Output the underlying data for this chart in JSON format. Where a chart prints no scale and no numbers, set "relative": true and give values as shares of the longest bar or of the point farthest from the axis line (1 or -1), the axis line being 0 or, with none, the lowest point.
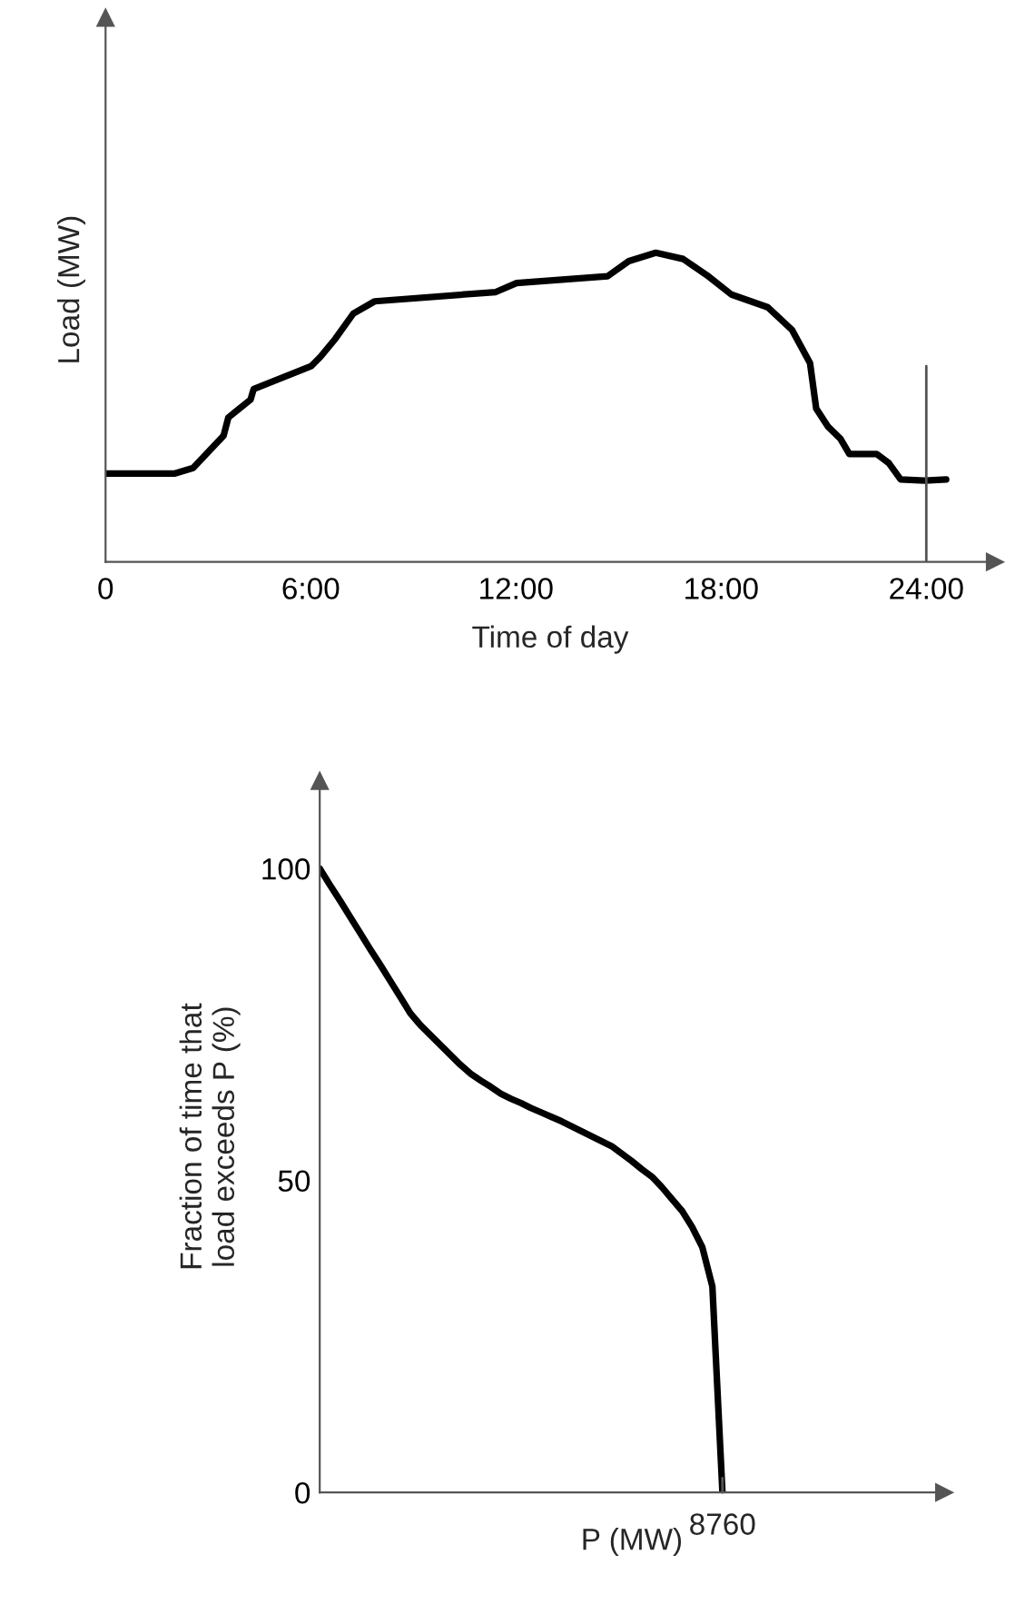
{
  "chart_data": [
    {
      "type": "line",
      "relative": true,
      "xlabel": "Time of day",
      "ylabel": "Load (MW)",
      "tick_labels": "x",
      "x": [
        0,
        2.03,
        2.56,
        3.45,
        3.59,
        4.24,
        4.33,
        6.01,
        6.28,
        6.72,
        7.25,
        7.87,
        11.41,
        12.02,
        14.68,
        15.3,
        16.09,
        16.89,
        17.59,
        18.3,
        19.36,
        20.07,
        20.6,
        20.78,
        21.13,
        21.49,
        21.75,
        22.55,
        22.9,
        23.25,
        23.96,
        24.58
      ],
      "series": [
        {
          "color": "#000000",
          "values": [
            0.286,
            0.286,
            0.304,
            0.408,
            0.467,
            0.525,
            0.559,
            0.633,
            0.663,
            0.722,
            0.804,
            0.843,
            0.873,
            0.902,
            0.924,
            0.973,
            1.0,
            0.98,
            0.927,
            0.865,
            0.824,
            0.751,
            0.643,
            0.496,
            0.437,
            0.398,
            0.349,
            0.349,
            0.32,
            0.267,
            0.263,
            0.267
          ]
        }
      ],
      "xlim": [
        0,
        26
      ],
      "xticks": [
        0,
        {
          "value": 6,
          "label": "6:00"
        },
        {
          "value": 12,
          "label": "12:00"
        },
        {
          "value": 18,
          "label": "18:00"
        },
        {
          "value": 24,
          "label": "24:00"
        }
      ],
      "ref_lines": [
        {
          "axis": "x",
          "value": 24,
          "color": "#555555"
        }
      ],
      "grid": false,
      "legend": false
    },
    {
      "type": "line",
      "xlabel": "P (MW)",
      "ylabel": "Fraction of time that\nload exceeds P (%)",
      "categories": [
        null,
        null,
        null,
        null,
        null,
        null,
        null,
        null,
        null,
        null,
        null,
        null,
        null,
        null,
        null,
        null,
        null,
        null,
        null,
        null,
        null,
        null,
        null,
        null,
        null,
        null,
        null,
        null,
        null,
        null,
        null,
        null,
        null,
        null,
        null,
        null,
        null,
        null,
        null,
        null,
        null,
        null,
        null,
        null,
        null,
        null,
        null,
        null,
        null,
        null,
        null,
        null,
        null,
        null,
        null,
        null,
        null,
        null,
        null,
        null,
        null,
        null,
        null
      ],
      "series": [
        {
          "color": "#000000",
          "values": [
            100,
            97.4,
            94.9,
            92.3,
            89.7,
            87.1,
            84.6,
            82.0,
            79.4,
            76.8,
            74.9,
            73.3,
            71.7,
            70.1,
            68.5,
            67.1,
            66.0,
            65.0,
            63.9,
            63.1,
            62.4,
            61.6,
            60.9,
            60.2,
            59.5,
            58.7,
            57.9,
            57.1,
            56.3,
            55.5,
            54.3,
            53.1,
            51.8,
            50.6,
            48.9,
            47.0,
            45.1,
            42.5,
            39.3,
            33.0,
            0,
            null,
            null,
            null,
            null,
            null,
            null,
            null,
            null,
            null,
            null,
            null,
            null,
            null,
            null,
            null,
            null,
            null,
            null,
            null,
            null,
            null,
            null
          ]
        }
      ],
      "ylim": [
        0,
        114
      ],
      "annotations": [
        "8760"
      ],
      "yticks": [
        0,
        50,
        100
      ],
      "grid": false,
      "legend": false
    }
  ]
}
